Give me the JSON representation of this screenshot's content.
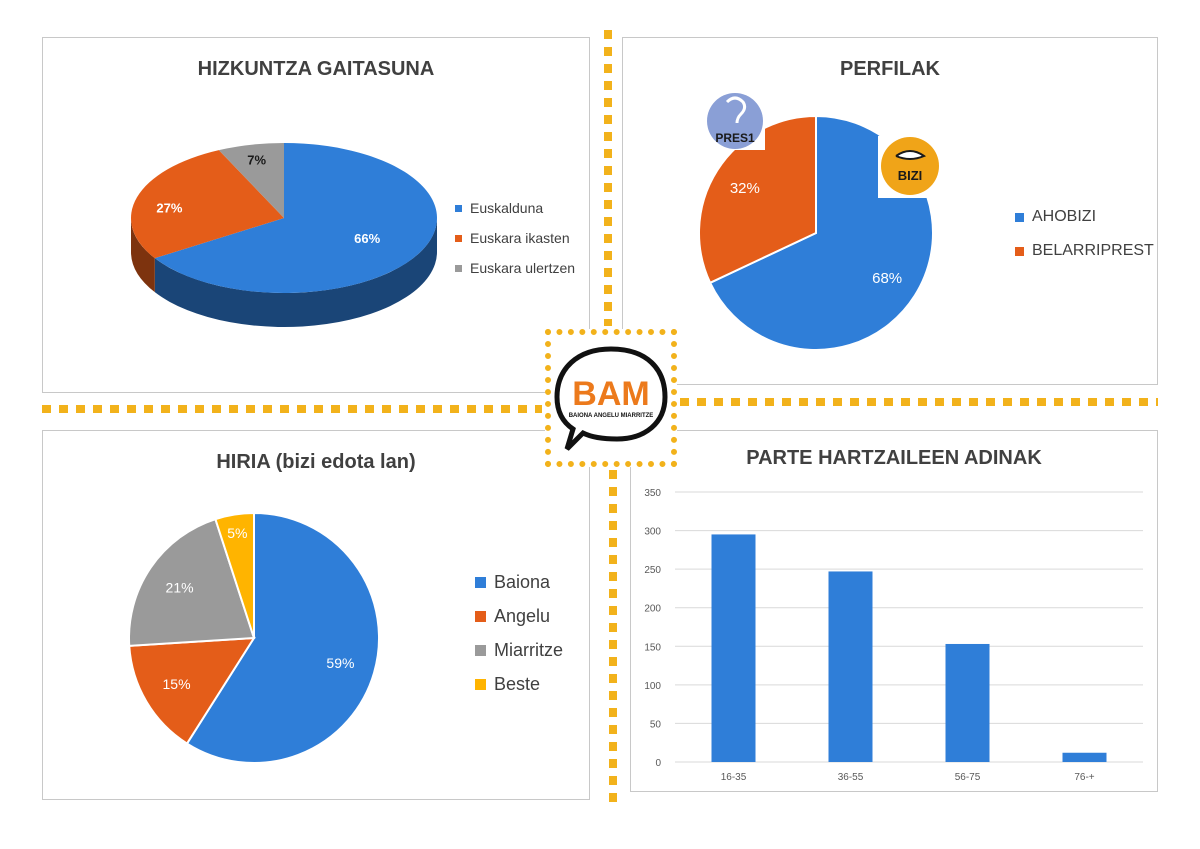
{
  "colors": {
    "blue": "#2f7ed8",
    "orange": "#e45d19",
    "gray": "#9a9a9a",
    "yellow": "#ffb400",
    "dash": "#f2b21b"
  },
  "logo": {
    "text": "BAM",
    "subtitle": "BAIONA ANGELU MIARRITZE"
  },
  "badges": {
    "belarri": "PRES1",
    "aho": "BIZI"
  },
  "chart_data": [
    {
      "type": "pie",
      "title": "HIZKUNTZA GAITASUNA",
      "categories": [
        "Euskalduna",
        "Euskara ikasten",
        "Euskara ulertzen"
      ],
      "values": [
        66,
        27,
        7
      ],
      "labels": [
        "66%",
        "27%",
        "7%"
      ],
      "legend": "right",
      "style": "3d"
    },
    {
      "type": "pie",
      "title": "PERFILAK",
      "categories": [
        "AHOBIZI",
        "BELARRIPREST"
      ],
      "values": [
        68,
        32
      ],
      "labels": [
        "68%",
        "32%"
      ],
      "legend": "right"
    },
    {
      "type": "pie",
      "title": "HIRIA (bizi edotа lan)",
      "categories": [
        "Baiona",
        "Angelu",
        "Miarritze",
        "Beste"
      ],
      "values": [
        59,
        15,
        21,
        5
      ],
      "labels": [
        "59%",
        "15%",
        "21%",
        "5%"
      ],
      "legend": "right"
    },
    {
      "type": "bar",
      "title": "PARTE HARTZAILEEN ADINAK",
      "categories": [
        "16-35",
        "36-55",
        "56-75",
        "76-+"
      ],
      "values": [
        295,
        247,
        153,
        12
      ],
      "ylim": [
        0,
        350
      ],
      "yticks": [
        0,
        50,
        100,
        150,
        200,
        250,
        300,
        350
      ],
      "grid": true
    }
  ]
}
